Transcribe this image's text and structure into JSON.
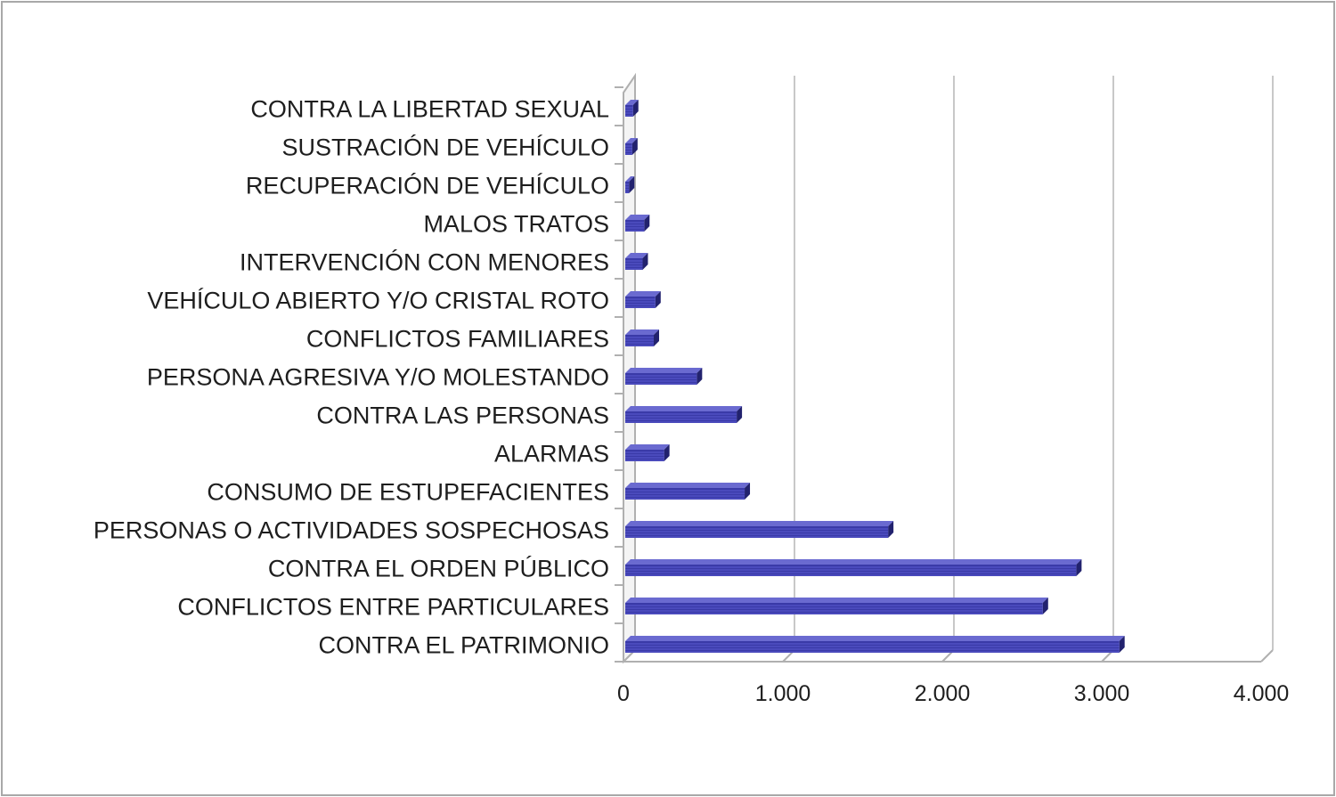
{
  "chart_data": {
    "type": "bar",
    "orientation": "horizontal",
    "style": "3d",
    "title": "",
    "xlabel": "",
    "ylabel": "",
    "xlim": [
      0,
      4000
    ],
    "x_ticks": [
      0,
      1000,
      2000,
      3000,
      4000
    ],
    "x_tick_labels": [
      "0",
      "1.000",
      "2.000",
      "3.000",
      "4.000"
    ],
    "grid": "vertical",
    "bar_color": "#3a3aa8",
    "categories": [
      "CONTRA LA LIBERTAD SEXUAL",
      "SUSTRACIÓN DE VEHÍCULO",
      "RECUPERACIÓN DE VEHÍCULO",
      "MALOS TRATOS",
      "INTERVENCIÓN CON MENORES",
      "VEHÍCULO ABIERTO Y/O CRISTAL ROTO",
      "CONFLICTOS FAMILIARES",
      "PERSONA AGRESIVA Y/O MOLESTANDO",
      "CONTRA LAS PERSONAS",
      "ALARMAS",
      "CONSUMO DE ESTUPEFACIENTES",
      "PERSONAS O ACTIVIDADES SOSPECHOSAS",
      "CONTRA EL ORDEN PÚBLICO",
      "CONFLICTOS ENTRE PARTICULARES",
      "CONTRA EL PATRIMONIO"
    ],
    "values": [
      60,
      55,
      35,
      130,
      120,
      200,
      190,
      460,
      710,
      255,
      760,
      1660,
      2840,
      2630,
      3110
    ]
  }
}
